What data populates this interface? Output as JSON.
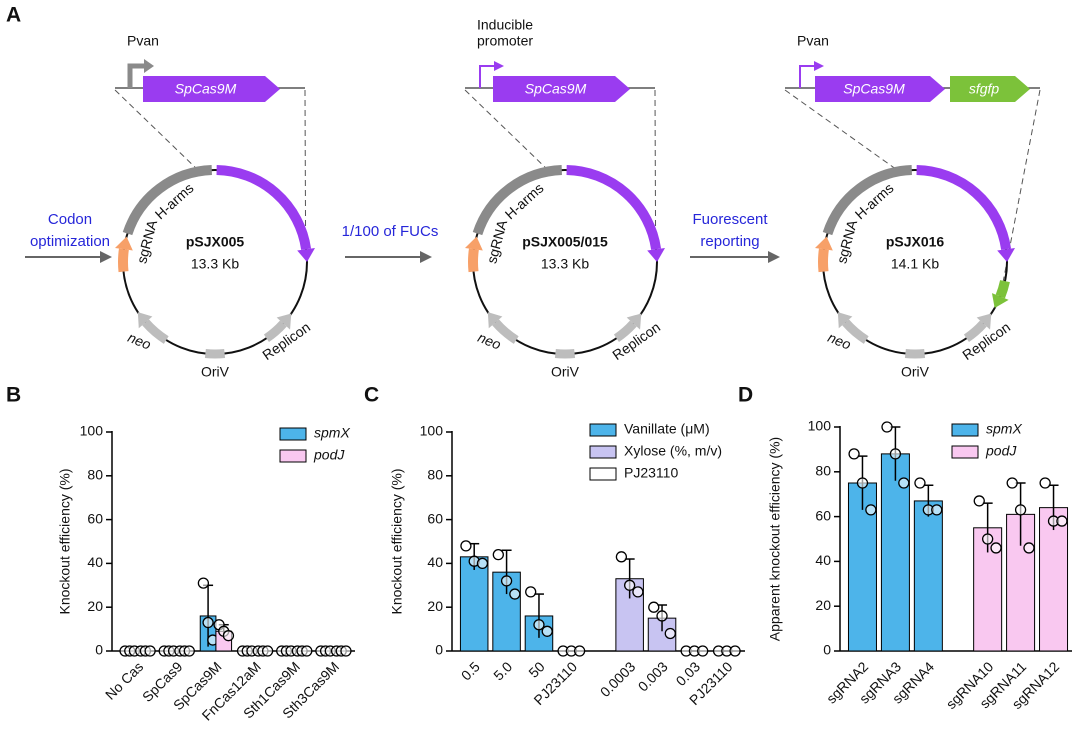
{
  "panel_labels": [
    "A",
    "B",
    "C",
    "D"
  ],
  "diagram": {
    "constructs": [
      {
        "promoter": [
          "Pvan"
        ],
        "genes": [
          "SpCas9M"
        ]
      },
      {
        "promoter": [
          "Inducible",
          "promoter"
        ],
        "genes": [
          "SpCas9M"
        ]
      },
      {
        "promoter": [
          "Pvan"
        ],
        "genes": [
          "SpCas9M",
          "sfgfp"
        ]
      }
    ],
    "plasmids": [
      {
        "name": "pSJX005",
        "size": "13.3 Kb",
        "features": [
          "H-arms",
          "sgRNA",
          "neo",
          "OriV",
          "Replicon"
        ]
      },
      {
        "name": "pSJX005/015",
        "size": "13.3 Kb",
        "features": [
          "H-arms",
          "sgRNA",
          "neo",
          "OriV",
          "Replicon"
        ]
      },
      {
        "name": "pSJX016",
        "size": "14.1 Kb",
        "features": [
          "H-arms",
          "sgRNA",
          "neo",
          "OriV",
          "Replicon"
        ]
      }
    ],
    "steps": [
      [
        "Codon",
        "optimization"
      ],
      [
        "1/100 of FUCs"
      ],
      [
        "Fuorescent",
        "reporting"
      ]
    ]
  },
  "chart_data": [
    {
      "type": "bar",
      "y_label": "Knockout efficiency (%)",
      "categories": [
        "No Cas",
        "SpCas9",
        "SpCas9M",
        "FnCas12aM",
        "Sth1Cas9M",
        "Sth3Cas9M"
      ],
      "series": [
        {
          "name": "spmX",
          "color": "#4db4ea",
          "values": [
            0,
            0,
            16,
            0,
            0,
            0
          ],
          "errors": [
            0,
            0,
            14,
            0,
            0,
            0
          ],
          "points": [
            [
              0,
              0,
              0
            ],
            [
              0,
              0,
              0
            ],
            [
              31,
              13,
              5
            ],
            [
              0,
              0,
              0
            ],
            [
              0,
              0,
              0
            ],
            [
              0,
              0,
              0
            ]
          ]
        },
        {
          "name": "podJ",
          "color": "#f9c8f0",
          "values": [
            0,
            0,
            9,
            0,
            0,
            0
          ],
          "errors": [
            0,
            0,
            3,
            0,
            0,
            0
          ],
          "points": [
            [
              0,
              0,
              0
            ],
            [
              0,
              0,
              0
            ],
            [
              12,
              9,
              7
            ],
            [
              0,
              0,
              0
            ],
            [
              0,
              0,
              0
            ],
            [
              0,
              0,
              0
            ]
          ]
        }
      ],
      "ylim": [
        0,
        100
      ],
      "yticks": [
        0,
        20,
        40,
        60,
        80,
        100
      ],
      "grid": false,
      "legend": "top-right"
    },
    {
      "type": "bar",
      "y_label": "Knockout efficiency (%)",
      "categories": [
        "0.5",
        "5.0",
        "50",
        "PJ23110",
        "0.0003",
        "0.003",
        "0.03",
        "PJ23110"
      ],
      "series": [
        {
          "name": "Vanillate (μM)",
          "color": "#4db4ea",
          "values": [
            43,
            36,
            16,
            null,
            null,
            null,
            null,
            null
          ],
          "errors": [
            6,
            10,
            10,
            null,
            null,
            null,
            null,
            null
          ],
          "points": [
            [
              48,
              41,
              40
            ],
            [
              44,
              32,
              26
            ],
            [
              27,
              12,
              9
            ],
            null,
            null,
            null,
            null,
            null
          ]
        },
        {
          "name": "Xylose (%, m/v)",
          "color": "#c8c4f2",
          "values": [
            null,
            null,
            null,
            null,
            33,
            15,
            0,
            null
          ],
          "errors": [
            null,
            null,
            null,
            null,
            9,
            6,
            0,
            null
          ],
          "points": [
            null,
            null,
            null,
            null,
            [
              43,
              30,
              27
            ],
            [
              20,
              16,
              8
            ],
            [
              0,
              0,
              0
            ],
            null
          ]
        },
        {
          "name": "PJ23110",
          "color": "#ffffff",
          "values": [
            null,
            null,
            null,
            0,
            null,
            null,
            null,
            0
          ],
          "errors": [
            null,
            null,
            null,
            0,
            null,
            null,
            null,
            0
          ],
          "points": [
            null,
            null,
            null,
            [
              0,
              0,
              0
            ],
            null,
            null,
            null,
            [
              0,
              0,
              0
            ]
          ]
        }
      ],
      "ylim": [
        0,
        100
      ],
      "yticks": [
        0,
        20,
        40,
        60,
        80,
        100
      ],
      "grid": false,
      "legend": "top-right"
    },
    {
      "type": "bar",
      "y_label": "Apparent knockout efficiency (%)",
      "categories": [
        "sgRNA2",
        "sgRNA3",
        "sgRNA4",
        "sgRNA10",
        "sgRNA11",
        "sgRNA12"
      ],
      "series": [
        {
          "name": "spmX",
          "color": "#4db4ea",
          "values": [
            75,
            88,
            67,
            null,
            null,
            null
          ],
          "errors": [
            12,
            12,
            7,
            null,
            null,
            null
          ],
          "points": [
            [
              88,
              75,
              63
            ],
            [
              100,
              88,
              75
            ],
            [
              75,
              63,
              63
            ],
            null,
            null,
            null
          ]
        },
        {
          "name": "podJ",
          "color": "#f9c8f0",
          "values": [
            null,
            null,
            null,
            55,
            61,
            64
          ],
          "errors": [
            null,
            null,
            null,
            11,
            14,
            10
          ],
          "points": [
            null,
            null,
            null,
            [
              67,
              50,
              46
            ],
            [
              75,
              63,
              46
            ],
            [
              75,
              58,
              58
            ]
          ]
        }
      ],
      "ylim": [
        0,
        100
      ],
      "yticks": [
        0,
        20,
        40,
        60,
        80,
        100
      ],
      "grid": false,
      "legend": "top-right"
    }
  ]
}
